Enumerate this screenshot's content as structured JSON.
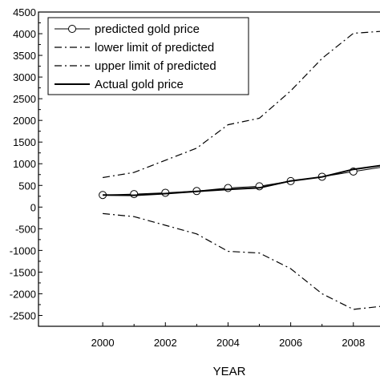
{
  "chart_data": {
    "type": "line",
    "xlabel": "YEAR",
    "ylabel": "",
    "xlim": [
      1997.95,
      2008.85
    ],
    "ylim": [
      -2750,
      4500
    ],
    "xticks": [
      2000,
      2002,
      2004,
      2006,
      2008
    ],
    "yticks": [
      -2500,
      -2000,
      -1500,
      -1000,
      -500,
      0,
      500,
      1000,
      1500,
      2000,
      2500,
      3000,
      3500,
      4000,
      4500
    ],
    "x": [
      2000,
      2001,
      2002,
      2003,
      2004,
      2005,
      2006,
      2007,
      2008,
      2009
    ],
    "series": [
      {
        "name": "predicted gold price",
        "style": "thin-line-circles",
        "values": [
          279,
          300,
          330,
          370,
          440,
          480,
          600,
          700,
          820,
          930
        ]
      },
      {
        "name": "lower limit of predicted",
        "style": "dash-dot",
        "values": [
          -150,
          -220,
          -420,
          -620,
          -1020,
          -1060,
          -1420,
          -2000,
          -2360,
          -2280
        ]
      },
      {
        "name": "upper limit of predicted",
        "style": "dash-dot",
        "values": [
          680,
          800,
          1080,
          1360,
          1900,
          2050,
          2680,
          3430,
          4010,
          4060
        ]
      },
      {
        "name": "Actual gold price",
        "style": "thick-line",
        "values": [
          279,
          272,
          310,
          363,
          409,
          444,
          603,
          695,
          872,
          972
        ]
      }
    ],
    "legend_position": "top-left",
    "grid": false,
    "colors": {
      "line": "#000000",
      "background": "#ffffff"
    }
  }
}
